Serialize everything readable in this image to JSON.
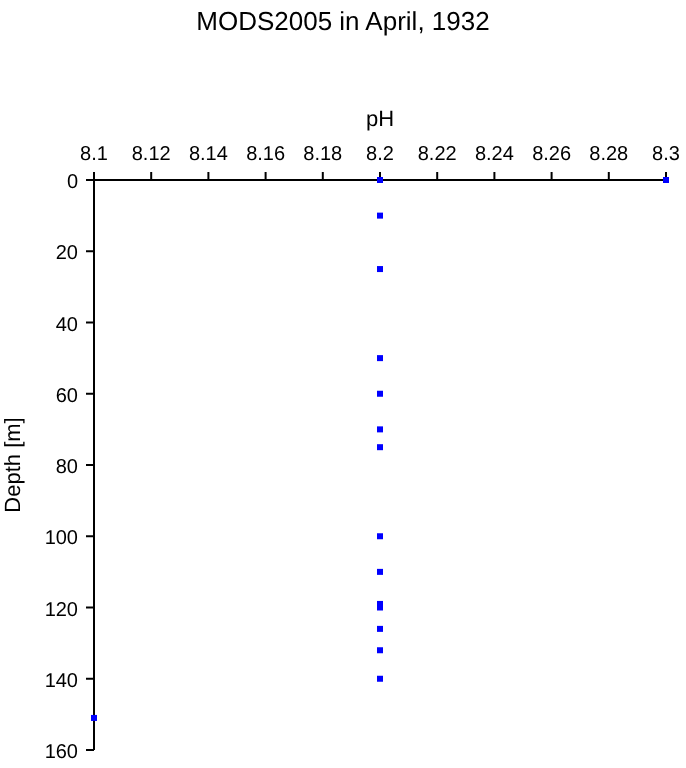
{
  "chart_data": {
    "type": "scatter",
    "title": "MODS2005 in April, 1932",
    "xlabel": "pH",
    "ylabel": "Depth [m]",
    "x": [
      8.2,
      8.3,
      8.2,
      8.2,
      8.2,
      8.2,
      8.2,
      8.2,
      8.2,
      8.2,
      8.2,
      8.2,
      8.2,
      8.2,
      8.2,
      8.1
    ],
    "series": [
      {
        "color": "#0000ff",
        "values": [
          0,
          0,
          10,
          25,
          50,
          60,
          70,
          75,
          100,
          110,
          119,
          120,
          126,
          132,
          140,
          151
        ]
      }
    ],
    "xlim": [
      8.1,
      8.3
    ],
    "xticks": [
      8.1,
      8.12,
      8.14,
      8.16,
      8.18,
      8.2,
      8.22,
      8.24,
      8.26,
      8.28,
      8.3
    ],
    "ylim": [
      160,
      0
    ],
    "yticks": [
      0,
      20,
      40,
      60,
      80,
      100,
      120,
      140,
      160
    ],
    "grid": false,
    "marker": "square"
  }
}
